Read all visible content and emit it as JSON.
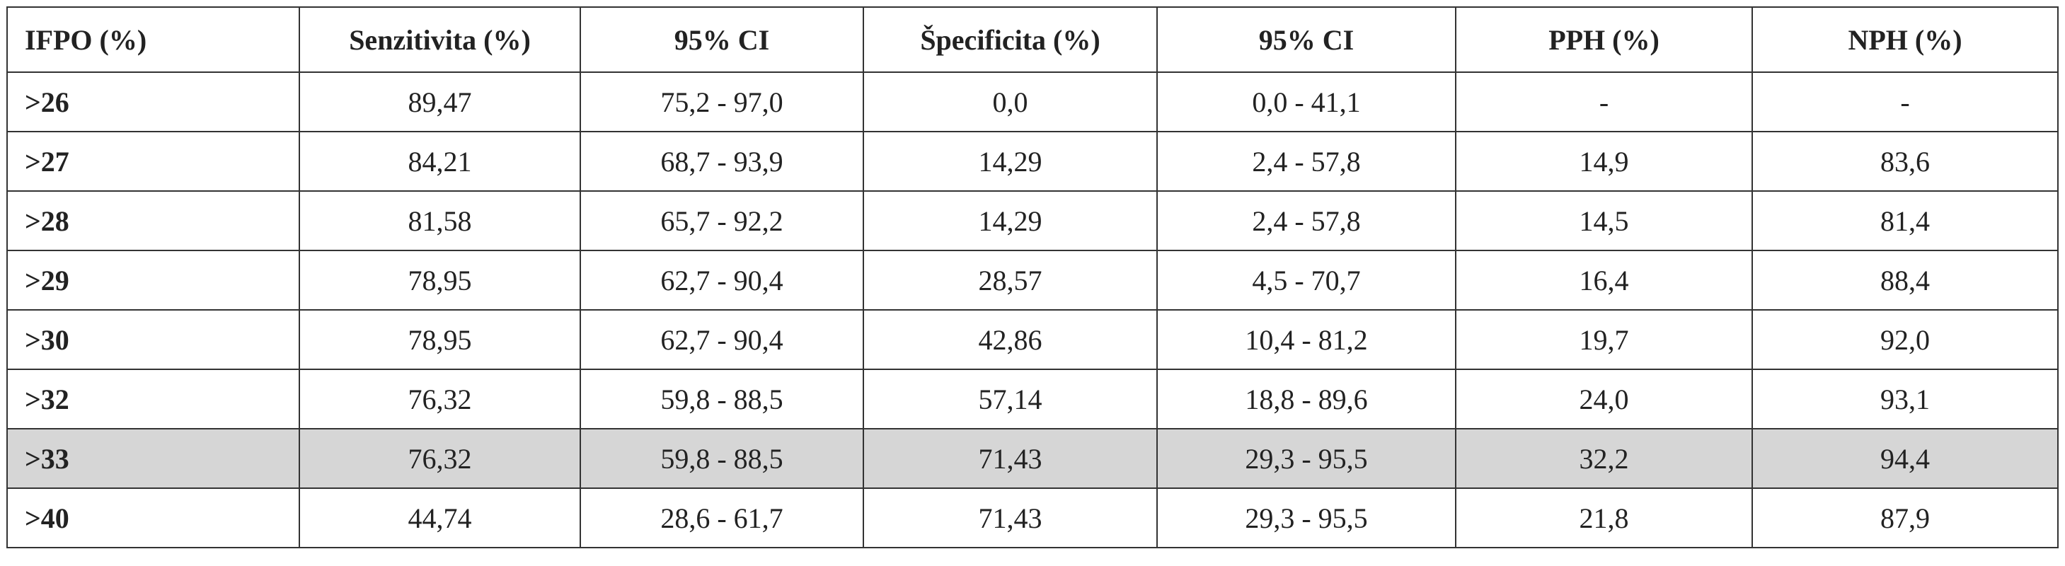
{
  "table": {
    "header": [
      "IFPO (%)",
      "Senzitivita (%)",
      "95% CI",
      "Špecificita (%)",
      "95% CI",
      "PPH (%)",
      "NPH (%)"
    ],
    "rows": [
      [
        ">26",
        "89,47",
        "75,2 - 97,0",
        "0,0",
        "0,0 - 41,1",
        "-",
        "-"
      ],
      [
        ">27",
        "84,21",
        "68,7 - 93,9",
        "14,29",
        "2,4 - 57,8",
        "14,9",
        "83,6"
      ],
      [
        ">28",
        "81,58",
        "65,7 - 92,2",
        "14,29",
        "2,4 - 57,8",
        "14,5",
        "81,4"
      ],
      [
        ">29",
        "78,95",
        "62,7 - 90,4",
        "28,57",
        "4,5 - 70,7",
        "16,4",
        "88,4"
      ],
      [
        ">30",
        "78,95",
        "62,7 - 90,4",
        "42,86",
        "10,4 - 81,2",
        "19,7",
        "92,0"
      ],
      [
        ">32",
        "76,32",
        "59,8 - 88,5",
        "57,14",
        "18,8 - 89,6",
        "24,0",
        "93,1"
      ],
      [
        ">33",
        "76,32",
        "59,8 - 88,5",
        "71,43",
        "29,3 - 95,5",
        "32,2",
        "94,4"
      ],
      [
        ">40",
        "44,74",
        "28,6 - 61,7",
        "71,43",
        "29,3 - 95,5",
        "21,8",
        "87,9"
      ]
    ]
  }
}
